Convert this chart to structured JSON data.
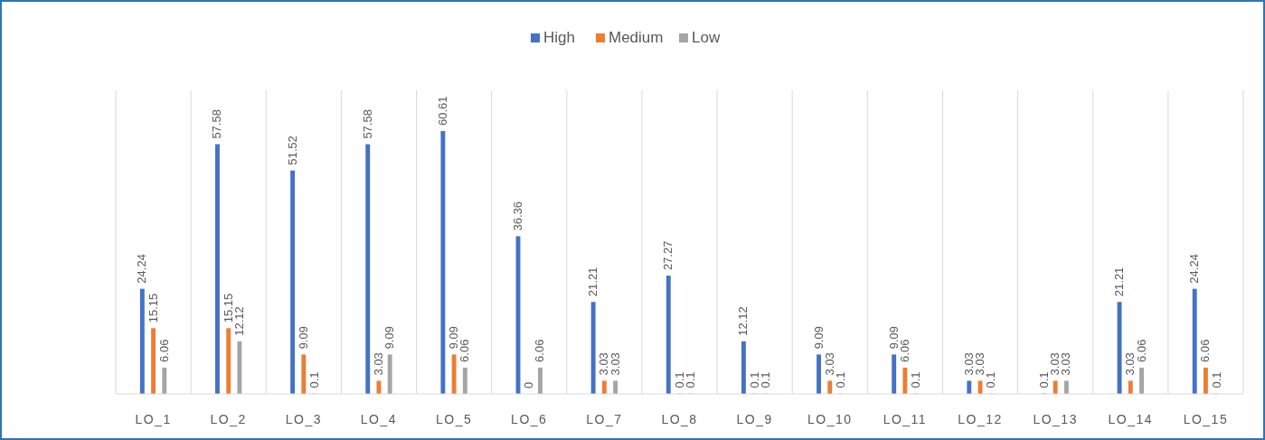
{
  "chart_data": {
    "type": "bar",
    "categories": [
      "LO_1",
      "LO_2",
      "LO_3",
      "LO_4",
      "LO_5",
      "LO_6",
      "LO_7",
      "LO_8",
      "LO_9",
      "LO_10",
      "LO_11",
      "LO_12",
      "LO_13",
      "LO_14",
      "LO_15"
    ],
    "series": [
      {
        "name": "High",
        "color": "#4472c4",
        "values": [
          24.24,
          57.58,
          51.52,
          57.58,
          60.61,
          36.36,
          21.21,
          27.27,
          12.12,
          9.09,
          9.09,
          3.03,
          0.1,
          21.21,
          24.24
        ]
      },
      {
        "name": "Medium",
        "color": "#ed7d31",
        "values": [
          15.15,
          15.15,
          9.09,
          3.03,
          9.09,
          0,
          3.03,
          0.1,
          0.1,
          3.03,
          6.06,
          3.03,
          3.03,
          3.03,
          6.06
        ]
      },
      {
        "name": "Low",
        "color": "#a5a5a5",
        "values": [
          6.06,
          12.12,
          0.1,
          9.09,
          6.06,
          6.06,
          3.03,
          0.1,
          0.1,
          0.1,
          0.1,
          0.1,
          3.03,
          6.06,
          0.1
        ]
      }
    ],
    "ylim": [
      0,
      70
    ],
    "data_labels": true,
    "grid": "x",
    "legend": "top",
    "tick_labels": "x"
  }
}
